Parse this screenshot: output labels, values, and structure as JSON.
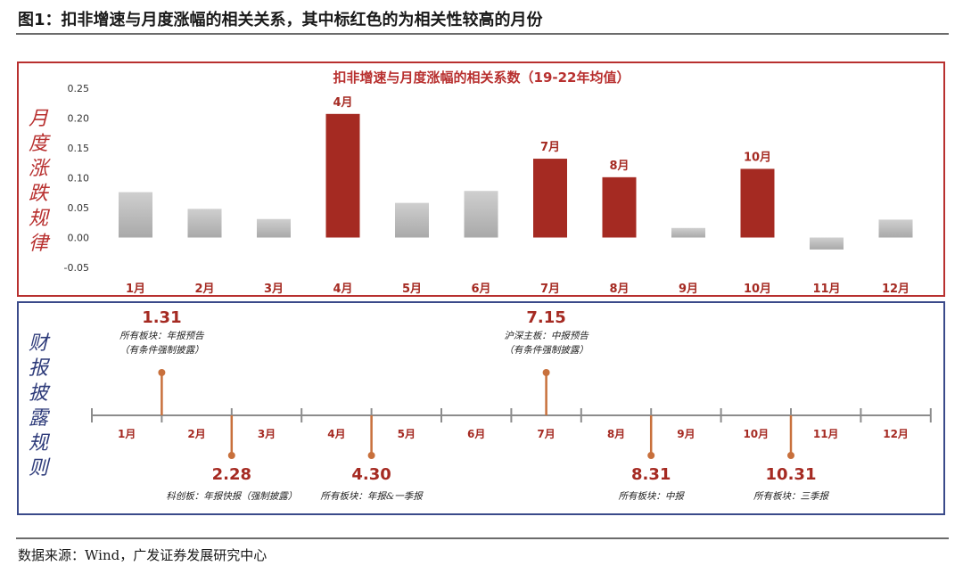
{
  "figure_title": "图1：扣非增速与月度涨幅的相关关系，其中标红色的为相关性较高的月份",
  "source": "数据来源：Wind，广发证券发展研究中心",
  "left_label_top": [
    "月",
    "度",
    "涨",
    "跌",
    "规",
    "律"
  ],
  "left_label_bottom": [
    "财",
    "报",
    "披",
    "露",
    "规",
    "则"
  ],
  "colors": {
    "highlight": "#a52a22",
    "normal": "#c0c0c0",
    "marker": "#c8703c",
    "red_border": "#b8302f",
    "blue_border": "#3a4a8a"
  },
  "chart_data": {
    "type": "bar",
    "title": "扣非增速与月度涨幅的相关系数（19-22年均值）",
    "categories": [
      "1月",
      "2月",
      "3月",
      "4月",
      "5月",
      "6月",
      "7月",
      "8月",
      "9月",
      "10月",
      "11月",
      "12月"
    ],
    "values": [
      0.076,
      0.048,
      0.031,
      0.207,
      0.058,
      0.078,
      0.132,
      0.101,
      0.016,
      0.115,
      -0.02,
      0.03
    ],
    "highlight": [
      false,
      false,
      false,
      true,
      false,
      false,
      true,
      true,
      false,
      true,
      false,
      false
    ],
    "bar_labels": [
      "",
      "",
      "",
      "4月",
      "",
      "",
      "7月",
      "8月",
      "",
      "10月",
      "",
      ""
    ],
    "yticks": [
      "0.25",
      "0.20",
      "0.15",
      "0.10",
      "0.05",
      "0.00",
      "-0.05"
    ],
    "ylim": [
      -0.05,
      0.25
    ]
  },
  "timeline": {
    "months": [
      "1月",
      "2月",
      "3月",
      "4月",
      "5月",
      "6月",
      "7月",
      "8月",
      "9月",
      "10月",
      "11月",
      "12月"
    ],
    "events": [
      {
        "date": "1.31",
        "pos": 1.0,
        "side": "up",
        "desc": [
          "所有板块：年报预告",
          "（有条件强制披露）"
        ]
      },
      {
        "date": "2.28",
        "pos": 2.0,
        "side": "down",
        "desc": [
          "科创板：年报快报（强制披露）"
        ]
      },
      {
        "date": "4.30",
        "pos": 4.0,
        "side": "down",
        "desc": [
          "所有板块：年报&一季报"
        ]
      },
      {
        "date": "7.15",
        "pos": 6.5,
        "side": "up",
        "desc": [
          "沪深主板：中报预告",
          "（有条件强制披露）"
        ]
      },
      {
        "date": "8.31",
        "pos": 8.0,
        "side": "down",
        "desc": [
          "所有板块：中报"
        ]
      },
      {
        "date": "10.31",
        "pos": 10.0,
        "side": "down",
        "desc": [
          "所有板块：三季报"
        ]
      }
    ]
  }
}
